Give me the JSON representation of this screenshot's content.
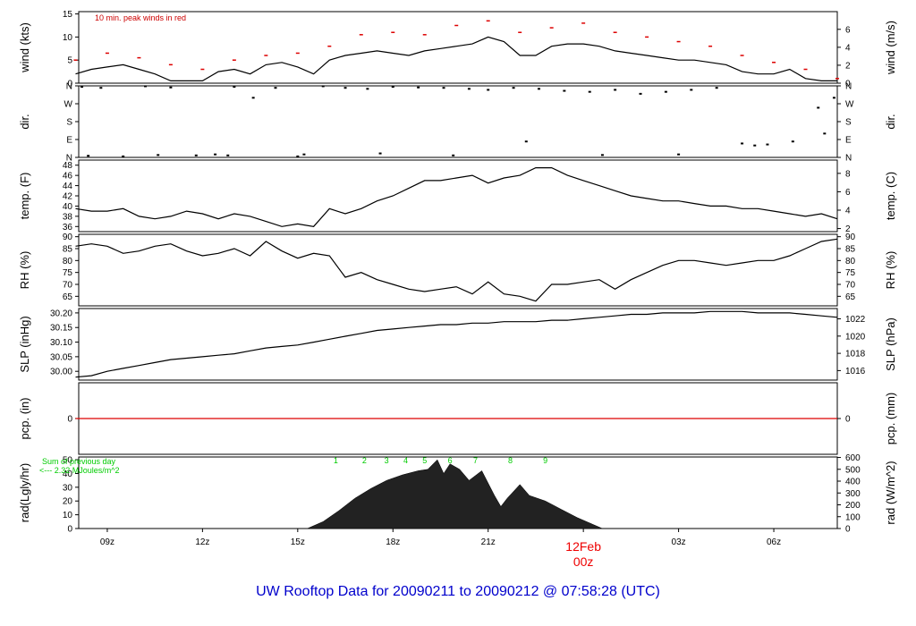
{
  "footer": {
    "title": "UW Rooftop Data for 20090211  to  20090212 @ 07:58:28  (UTC)"
  },
  "date_marker": {
    "day": "12Feb",
    "hour": "00z"
  },
  "colors": {
    "frame": "#000000",
    "peak": "#dd0000",
    "precip": "#dd0000",
    "note_green": "#00cc00",
    "title": "#0000cc",
    "radiation": "#222222"
  },
  "chart_data": [
    {
      "id": "wind",
      "type": "line",
      "ylabel": "wind (kts)",
      "ylabel_right": "wind (m/s)",
      "ylim": [
        0,
        15.5
      ],
      "ticks": [
        0,
        5,
        10,
        15
      ],
      "right_ticks": [
        0,
        2,
        4,
        6
      ],
      "right_factor": 1.944,
      "annotation": "10 min. peak winds in red",
      "series": [
        {
          "name": "wind",
          "x": [
            8,
            8.5,
            9,
            9.5,
            10,
            10.5,
            11,
            11.5,
            12,
            12.5,
            13,
            13.5,
            14,
            14.5,
            15,
            15.5,
            16,
            16.5,
            17,
            17.5,
            18,
            18.5,
            19,
            19.5,
            20,
            20.5,
            21,
            21.5,
            22,
            22.5,
            23,
            23.5,
            24,
            24.5,
            25,
            25.5,
            26,
            26.5,
            27,
            27.5,
            28,
            28.5,
            29,
            29.5,
            30,
            30.5,
            31,
            31.5,
            32
          ],
          "y": [
            2,
            3,
            3.5,
            4,
            3,
            2,
            0.5,
            0.5,
            0.5,
            2.5,
            3,
            2,
            4,
            4.5,
            3.5,
            2,
            5,
            6,
            6.5,
            7,
            6.5,
            6,
            7,
            7.5,
            8,
            8.5,
            10,
            9,
            6,
            6,
            8,
            8.5,
            8.5,
            8,
            7,
            6.5,
            6,
            5.5,
            5,
            5,
            4.5,
            4,
            2.5,
            2,
            2,
            3,
            1,
            0.5,
            0.5
          ]
        },
        {
          "name": "10 min. peak",
          "x": [
            8,
            9,
            10,
            11,
            12,
            13,
            14,
            15,
            16,
            17,
            18,
            19,
            20,
            21,
            22,
            23,
            24,
            25,
            26,
            27,
            28,
            29,
            30,
            31,
            32
          ],
          "y": [
            5,
            6.5,
            5.5,
            4,
            3,
            5,
            6,
            6.5,
            8,
            10.5,
            11,
            10.5,
            12.5,
            13.5,
            11,
            12,
            13,
            11,
            10,
            9,
            8,
            6,
            4.5,
            3,
            1
          ]
        }
      ]
    },
    {
      "id": "dir",
      "type": "scatter",
      "ylabel": "dir.",
      "ylabel_right": "dir.",
      "ylim": [
        0,
        360
      ],
      "tick_values": [
        0,
        90,
        180,
        270,
        360
      ],
      "tick_labels": [
        "N",
        "E",
        "S",
        "W",
        "N"
      ],
      "series": [
        {
          "name": "direction",
          "x": [
            8.2,
            8.8,
            9.5,
            10.2,
            11.0,
            11.8,
            12.4,
            13.0,
            13.6,
            14.3,
            15.0,
            15.8,
            16.5,
            17.2,
            18.0,
            18.8,
            19.6,
            20.4,
            21.0,
            21.8,
            22.6,
            23.4,
            24.2,
            25.0,
            25.8,
            26.6,
            27.4,
            28.2,
            29.0,
            29.8,
            30.6,
            31.4,
            31.9,
            8.4,
            10.6,
            12.8,
            15.2,
            17.6,
            19.9,
            22.2,
            24.6,
            27.0,
            29.4,
            31.6
          ],
          "y": [
            355,
            350,
            5,
            358,
            352,
            10,
            15,
            355,
            300,
            350,
            5,
            358,
            350,
            345,
            355,
            352,
            350,
            345,
            340,
            350,
            345,
            335,
            330,
            340,
            320,
            330,
            340,
            350,
            70,
            65,
            80,
            250,
            300,
            8,
            12,
            10,
            15,
            20,
            10,
            80,
            12,
            15,
            60,
            120
          ]
        }
      ]
    },
    {
      "id": "temp",
      "type": "line",
      "ylabel": "temp. (F)",
      "ylabel_right": "temp. (C)",
      "ylim": [
        35,
        49
      ],
      "ticks": [
        36,
        38,
        40,
        42,
        44,
        46,
        48
      ],
      "right_ticks": [
        2,
        4,
        6,
        8
      ],
      "series": [
        {
          "name": "temperature",
          "x": [
            8,
            8.5,
            9,
            9.5,
            10,
            10.5,
            11,
            11.5,
            12,
            12.5,
            13,
            13.5,
            14,
            14.5,
            15,
            15.5,
            16,
            16.5,
            17,
            17.5,
            18,
            18.5,
            19,
            19.5,
            20,
            20.5,
            21,
            21.5,
            22,
            22.5,
            23,
            23.5,
            24,
            24.5,
            25,
            25.5,
            26,
            26.5,
            27,
            27.5,
            28,
            28.5,
            29,
            29.5,
            30,
            30.5,
            31,
            31.5,
            32
          ],
          "y": [
            39.5,
            39,
            39,
            39.5,
            38,
            37.5,
            38,
            39,
            38.5,
            37.5,
            38.5,
            38,
            37,
            36,
            36.5,
            36,
            39.5,
            38.5,
            39.5,
            41,
            42,
            43.5,
            45,
            45,
            45.5,
            46,
            44.5,
            45.5,
            46,
            47.5,
            47.5,
            46,
            45,
            44,
            43,
            42,
            41.5,
            41,
            41,
            40.5,
            40,
            40,
            39.5,
            39.5,
            39,
            38.5,
            38,
            38.5,
            37.5
          ]
        }
      ]
    },
    {
      "id": "rh",
      "type": "line",
      "ylabel": "RH (%)",
      "ylabel_right": "RH (%)",
      "ylim": [
        61,
        91
      ],
      "ticks": [
        65,
        70,
        75,
        80,
        85,
        90
      ],
      "right_ticks": [
        65,
        70,
        75,
        80,
        85,
        90
      ],
      "series": [
        {
          "name": "relative humidity",
          "x": [
            8,
            8.5,
            9,
            9.5,
            10,
            10.5,
            11,
            11.5,
            12,
            12.5,
            13,
            13.5,
            14,
            14.5,
            15,
            15.5,
            16,
            16.5,
            17,
            17.5,
            18,
            18.5,
            19,
            19.5,
            20,
            20.5,
            21,
            21.5,
            22,
            22.5,
            23,
            23.5,
            24,
            24.5,
            25,
            25.5,
            26,
            26.5,
            27,
            27.5,
            28,
            28.5,
            29,
            29.5,
            30,
            30.5,
            31,
            31.5,
            32
          ],
          "y": [
            86,
            87,
            86,
            83,
            84,
            86,
            87,
            84,
            82,
            83,
            85,
            82,
            88,
            84,
            81,
            83,
            82,
            73,
            75,
            72,
            70,
            68,
            67,
            68,
            69,
            66,
            71,
            66,
            65,
            63,
            70,
            70,
            71,
            72,
            68,
            72,
            75,
            78,
            80,
            80,
            79,
            78,
            79,
            80,
            80,
            82,
            85,
            88,
            89
          ]
        }
      ]
    },
    {
      "id": "slp",
      "type": "line",
      "ylabel": "SLP (inHg)",
      "ylabel_right": "SLP (hPa)",
      "ylim": [
        29.97,
        30.215
      ],
      "ticks": [
        30.0,
        30.05,
        30.1,
        30.15,
        30.2
      ],
      "tick_labels": [
        "30.00",
        "30.05",
        "30.10",
        "30.15",
        "30.20"
      ],
      "right_ticks": [
        1016,
        1018,
        1020,
        1022
      ],
      "series": [
        {
          "name": "sea level pressure",
          "x": [
            8,
            8.5,
            9,
            9.5,
            10,
            10.5,
            11,
            11.5,
            12,
            12.5,
            13,
            13.5,
            14,
            14.5,
            15,
            15.5,
            16,
            16.5,
            17,
            17.5,
            18,
            18.5,
            19,
            19.5,
            20,
            20.5,
            21,
            21.5,
            22,
            22.5,
            23,
            23.5,
            24,
            24.5,
            25,
            25.5,
            26,
            26.5,
            27,
            27.5,
            28,
            28.5,
            29,
            29.5,
            30,
            30.5,
            31,
            31.5,
            32
          ],
          "y": [
            29.98,
            29.985,
            30.0,
            30.01,
            30.02,
            30.03,
            30.04,
            30.045,
            30.05,
            30.055,
            30.06,
            30.07,
            30.08,
            30.085,
            30.09,
            30.1,
            30.11,
            30.12,
            30.13,
            30.14,
            30.145,
            30.15,
            30.155,
            30.16,
            30.16,
            30.165,
            30.165,
            30.17,
            30.17,
            30.17,
            30.175,
            30.175,
            30.18,
            30.185,
            30.19,
            30.195,
            30.195,
            30.2,
            30.2,
            30.2,
            30.205,
            30.205,
            30.205,
            30.2,
            30.2,
            30.2,
            30.195,
            30.19,
            30.185
          ]
        }
      ]
    },
    {
      "id": "pcp",
      "type": "line",
      "ylabel": "pcp. (in)",
      "ylabel_right": "pcp. (mm)",
      "ylim": [
        -1,
        1
      ],
      "ticks": [
        0
      ],
      "right_ticks": [
        0
      ],
      "series": [
        {
          "name": "precipitation",
          "x": [
            8,
            32
          ],
          "y": [
            0,
            0
          ]
        }
      ]
    },
    {
      "id": "rad",
      "type": "area",
      "ylabel": "rad(Lgly/hr)",
      "ylabel_right": "rad (W/m^2)",
      "ylim": [
        0,
        52
      ],
      "ticks": [
        0,
        10,
        20,
        30,
        40,
        50
      ],
      "right_ticks": [
        0,
        100,
        200,
        300,
        400,
        500,
        600
      ],
      "right_factor": 0.0861,
      "note_line1": "Sum of previous day",
      "note_line2": "<--- 2.32 MJoules/m^2",
      "hour_marks": {
        "labels": [
          "1",
          "2",
          "3",
          "4",
          "5",
          "6",
          "7",
          "8",
          "9"
        ],
        "x": [
          16.2,
          17.1,
          17.8,
          18.4,
          19.0,
          19.8,
          20.6,
          21.7,
          22.8
        ]
      },
      "series": [
        {
          "name": "radiation",
          "x": [
            15.3,
            15.8,
            16.3,
            16.8,
            17.3,
            17.8,
            18.3,
            18.8,
            19.1,
            19.4,
            19.6,
            19.8,
            20.1,
            20.4,
            20.8,
            21.2,
            21.4,
            21.6,
            22.0,
            22.3,
            22.8,
            23.3,
            23.8,
            24.3,
            24.6
          ],
          "y": [
            0,
            5,
            13,
            22,
            29,
            35,
            39,
            42,
            43,
            50,
            40,
            47,
            43,
            35,
            42,
            24,
            16,
            22,
            32,
            24,
            20,
            14,
            8,
            3,
            0
          ]
        }
      ]
    }
  ],
  "x_axis": {
    "ticks": [
      9,
      12,
      15,
      18,
      21,
      27,
      30
    ],
    "labels": [
      "09z",
      "12z",
      "15z",
      "18z",
      "21z",
      "03z",
      "06z"
    ],
    "range": [
      8.1,
      32.0
    ],
    "day_marker_x": 24
  }
}
